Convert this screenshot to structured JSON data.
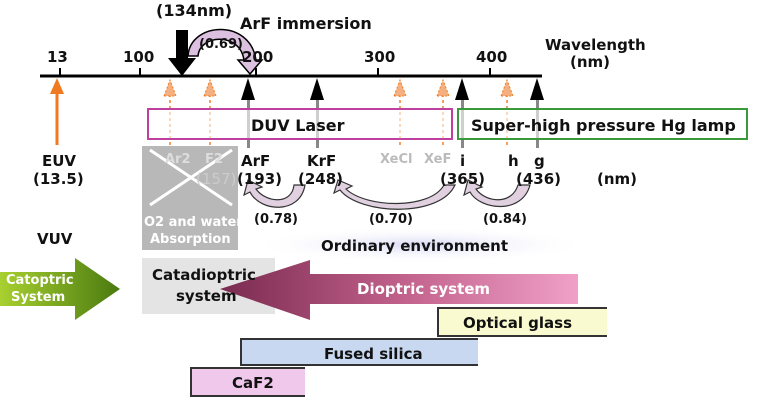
{
  "top": {
    "annotation": "(134nm)",
    "immersion": "ArF immersion",
    "immersion_ratio": "(0.69)"
  },
  "axis": {
    "title": "Wavelength",
    "unit": "(nm)",
    "ticks": [
      "13",
      "100",
      "200",
      "300",
      "400"
    ]
  },
  "boxes": {
    "duv": "DUV Laser",
    "hg": "Super-high pressure Hg lamp"
  },
  "euv": {
    "label": "EUV",
    "value": "(13.5)"
  },
  "absorbed": {
    "ar2": "Ar2",
    "f2": "F2",
    "f2_value": "(157)",
    "absorption_line1": "O2 and water",
    "absorption_line2": "Absorption"
  },
  "sources": [
    {
      "name": "ArF",
      "value": "(193)"
    },
    {
      "name": "KrF",
      "value": "(248)"
    },
    {
      "name": "XeCl",
      "value": ""
    },
    {
      "name": "XeF",
      "value": ""
    },
    {
      "name": "i",
      "value": "(365)"
    },
    {
      "name": "h",
      "value": ""
    },
    {
      "name": "g",
      "value": "(436)"
    }
  ],
  "unit_label": "(nm)",
  "ratios": [
    "(0.78)",
    "(0.70)",
    "(0.84)"
  ],
  "vuv": "VUV",
  "ordinary": "Ordinary environment",
  "systems": {
    "catoptric1": "Catoptric",
    "catoptric2": "System",
    "catadioptric1": "Catadioptric",
    "catadioptric2": "system",
    "dioptric": "Dioptric system"
  },
  "materials": {
    "optical_glass": "Optical glass",
    "fused_silica": "Fused silica",
    "caf2": "CaF2"
  },
  "colors": {
    "orange": "#f07a20",
    "duv": "#c040a0",
    "hg": "#3a9a3a",
    "catoptric": "#5a8a10",
    "dioptric": "#8a3a60"
  }
}
